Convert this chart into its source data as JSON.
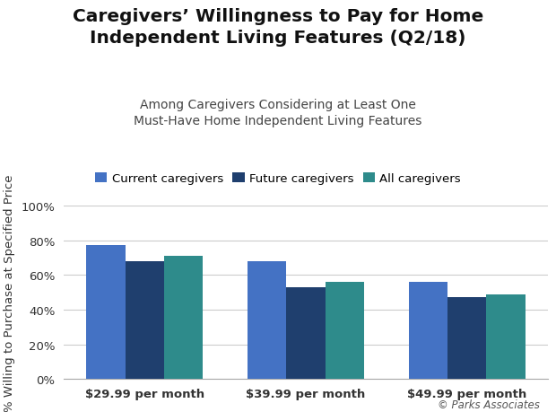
{
  "title_line1": "Caregivers’ Willingness to Pay for Home",
  "title_line2": "Independent Living Features (Q2/18)",
  "subtitle_line1": "Among Caregivers Considering at Least One",
  "subtitle_line2": "Must-Have Home Independent Living Features",
  "categories": [
    "$29.99 per month",
    "$39.99 per month",
    "$49.99 per month"
  ],
  "series": [
    {
      "label": "Current caregivers",
      "color": "#4472C4",
      "values": [
        77,
        68,
        56
      ]
    },
    {
      "label": "Future caregivers",
      "color": "#1F3F6E",
      "values": [
        68,
        53,
        47
      ]
    },
    {
      "label": "All caregivers",
      "color": "#2E8B8B",
      "values": [
        71,
        56,
        49
      ]
    }
  ],
  "ylabel": "% Willing to Purchase at Specified Price",
  "ylim": [
    0,
    100
  ],
  "yticks": [
    0,
    20,
    40,
    60,
    80,
    100
  ],
  "ytick_labels": [
    "0%",
    "20%",
    "40%",
    "60%",
    "80%",
    "100%"
  ],
  "bar_width": 0.24,
  "background_color": "#ffffff",
  "grid_color": "#cccccc",
  "copyright_text": "© Parks Associates",
  "title_fontsize": 14.5,
  "subtitle_fontsize": 10,
  "legend_fontsize": 9.5,
  "ylabel_fontsize": 9.5,
  "tick_fontsize": 9.5,
  "title_color": "#111111",
  "subtitle_color": "#444444",
  "copyright_fontsize": 8.5
}
